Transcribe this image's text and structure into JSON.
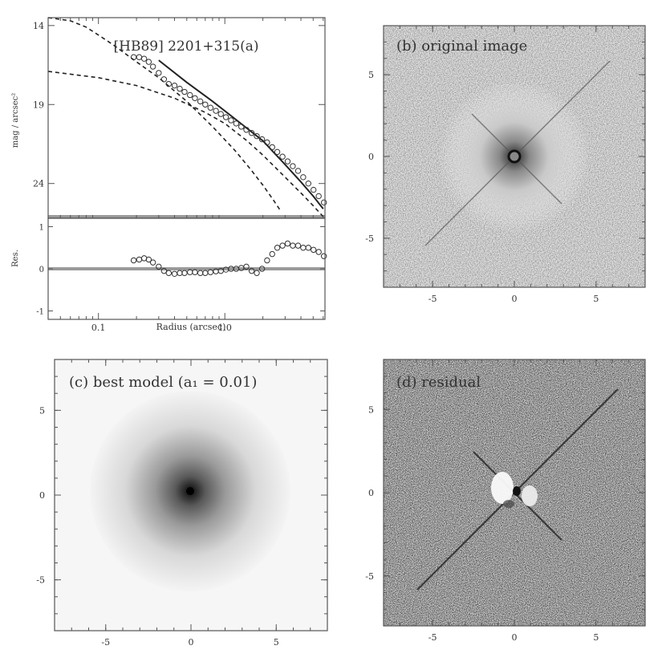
{
  "chart_data": [
    {
      "id": "profile",
      "type": "scatter",
      "title": "[HB89] 2201+315(a)",
      "xlabel": "Radius (arcsec)",
      "ylabel_top": "mag / arcsec²",
      "ylabel_bottom": "Res.",
      "xscale": "log",
      "xlim": [
        0.04,
        6.2
      ],
      "ylim_top": [
        13.5,
        26.2
      ],
      "ylim_bottom": [
        -1.2,
        1.2
      ],
      "x_ticks": [
        {
          "value": 0.1,
          "label": "0.1"
        },
        {
          "value": 1.0,
          "label": "1.0"
        }
      ],
      "y_ticks_top": [
        {
          "value": 14,
          "label": "14"
        },
        {
          "value": 19,
          "label": "19"
        },
        {
          "value": 24,
          "label": "24"
        }
      ],
      "y_ticks_bottom": [
        {
          "value": 1,
          "label": "1"
        },
        {
          "value": 0,
          "label": "0"
        },
        {
          "value": -1,
          "label": "-1"
        }
      ],
      "series": [
        {
          "style": "dashed",
          "x": [
            0.04,
            0.06,
            0.08,
            0.1,
            0.13,
            0.2,
            0.3,
            0.5,
            0.8,
            1.2,
            1.6,
            2.0,
            2.4,
            2.8
          ],
          "y": [
            13.5,
            13.7,
            14.1,
            14.6,
            15.2,
            16.3,
            17.3,
            18.8,
            20.4,
            21.9,
            23.1,
            24.1,
            25.0,
            25.8
          ]
        },
        {
          "style": "dashed",
          "x": [
            0.04,
            0.1,
            0.2,
            0.4,
            0.7,
            1.0,
            1.5,
            2.0,
            3.0,
            4.0,
            5.0,
            6.0
          ],
          "y": [
            16.9,
            17.3,
            17.8,
            18.6,
            19.5,
            20.2,
            21.3,
            22.2,
            23.6,
            24.6,
            25.4,
            26.1
          ]
        },
        {
          "style": "solid",
          "x": [
            0.3,
            0.5,
            0.8,
            1.2,
            2.0,
            3.0,
            4.0,
            5.0,
            6.0
          ],
          "y": [
            16.2,
            17.6,
            18.8,
            19.9,
            21.3,
            22.8,
            23.9,
            24.8,
            25.6
          ]
        },
        {
          "style": "points",
          "x": [
            0.19,
            0.21,
            0.23,
            0.25,
            0.27,
            0.3,
            0.33,
            0.36,
            0.4,
            0.44,
            0.48,
            0.53,
            0.58,
            0.64,
            0.7,
            0.77,
            0.85,
            0.93,
            1.02,
            1.12,
            1.23,
            1.35,
            1.48,
            1.63,
            1.79,
            1.97,
            2.16,
            2.37,
            2.6,
            2.86,
            3.14,
            3.45,
            3.8,
            4.17,
            4.58,
            5.03,
            5.53,
            6.08
          ],
          "y": [
            16.0,
            16.0,
            16.1,
            16.3,
            16.6,
            17.0,
            17.4,
            17.7,
            17.8,
            18.0,
            18.2,
            18.4,
            18.6,
            18.8,
            19.0,
            19.2,
            19.4,
            19.6,
            19.8,
            20.0,
            20.2,
            20.4,
            20.6,
            20.8,
            21.0,
            21.2,
            21.4,
            21.7,
            22.0,
            22.3,
            22.6,
            22.9,
            23.2,
            23.6,
            24.0,
            24.4,
            24.8,
            25.2
          ]
        }
      ],
      "residual_points": {
        "x": [
          0.19,
          0.21,
          0.23,
          0.25,
          0.27,
          0.3,
          0.33,
          0.36,
          0.4,
          0.44,
          0.48,
          0.53,
          0.58,
          0.64,
          0.7,
          0.77,
          0.85,
          0.93,
          1.02,
          1.12,
          1.23,
          1.35,
          1.48,
          1.63,
          1.79,
          1.97,
          2.16,
          2.37,
          2.6,
          2.86,
          3.14,
          3.45,
          3.8,
          4.17,
          4.58,
          5.03,
          5.53,
          6.08
        ],
        "y": [
          0.2,
          0.22,
          0.25,
          0.22,
          0.15,
          0.05,
          -0.05,
          -0.1,
          -0.12,
          -0.1,
          -0.1,
          -0.08,
          -0.08,
          -0.1,
          -0.1,
          -0.08,
          -0.06,
          -0.05,
          -0.02,
          0.0,
          0.0,
          0.02,
          0.05,
          -0.05,
          -0.1,
          0.0,
          0.2,
          0.35,
          0.5,
          0.55,
          0.6,
          0.55,
          0.55,
          0.5,
          0.5,
          0.45,
          0.4,
          0.3
        ]
      }
    },
    {
      "id": "original",
      "type": "heatmap",
      "title": "(b) original image",
      "xlim": [
        -8,
        8
      ],
      "ylim": [
        -8,
        8
      ],
      "x_ticks": [
        {
          "value": -5,
          "label": "-5"
        },
        {
          "value": 0,
          "label": "0"
        },
        {
          "value": 5,
          "label": "5"
        }
      ],
      "y_ticks": [
        {
          "value": 5,
          "label": "5"
        },
        {
          "value": 0,
          "label": "0"
        },
        {
          "value": -5,
          "label": "-5"
        }
      ]
    },
    {
      "id": "model",
      "type": "heatmap",
      "title": "(c) best model (a₁ = 0.01)",
      "xlim": [
        -8,
        8
      ],
      "ylim": [
        -8,
        8
      ],
      "x_ticks": [
        {
          "value": -5,
          "label": "-5"
        },
        {
          "value": 0,
          "label": "0"
        },
        {
          "value": 5,
          "label": "5"
        }
      ],
      "y_ticks": [
        {
          "value": 5,
          "label": "5"
        },
        {
          "value": 0,
          "label": "0"
        },
        {
          "value": -5,
          "label": "-5"
        }
      ]
    },
    {
      "id": "residual",
      "type": "heatmap",
      "title": "(d) residual",
      "xlim": [
        -8,
        8
      ],
      "ylim": [
        -8,
        8
      ],
      "x_ticks": [
        {
          "value": -5,
          "label": "-5"
        },
        {
          "value": 0,
          "label": "0"
        },
        {
          "value": 5,
          "label": "5"
        }
      ],
      "y_ticks": [
        {
          "value": 5,
          "label": "5"
        },
        {
          "value": 0,
          "label": "0"
        },
        {
          "value": -5,
          "label": "-5"
        }
      ]
    }
  ]
}
